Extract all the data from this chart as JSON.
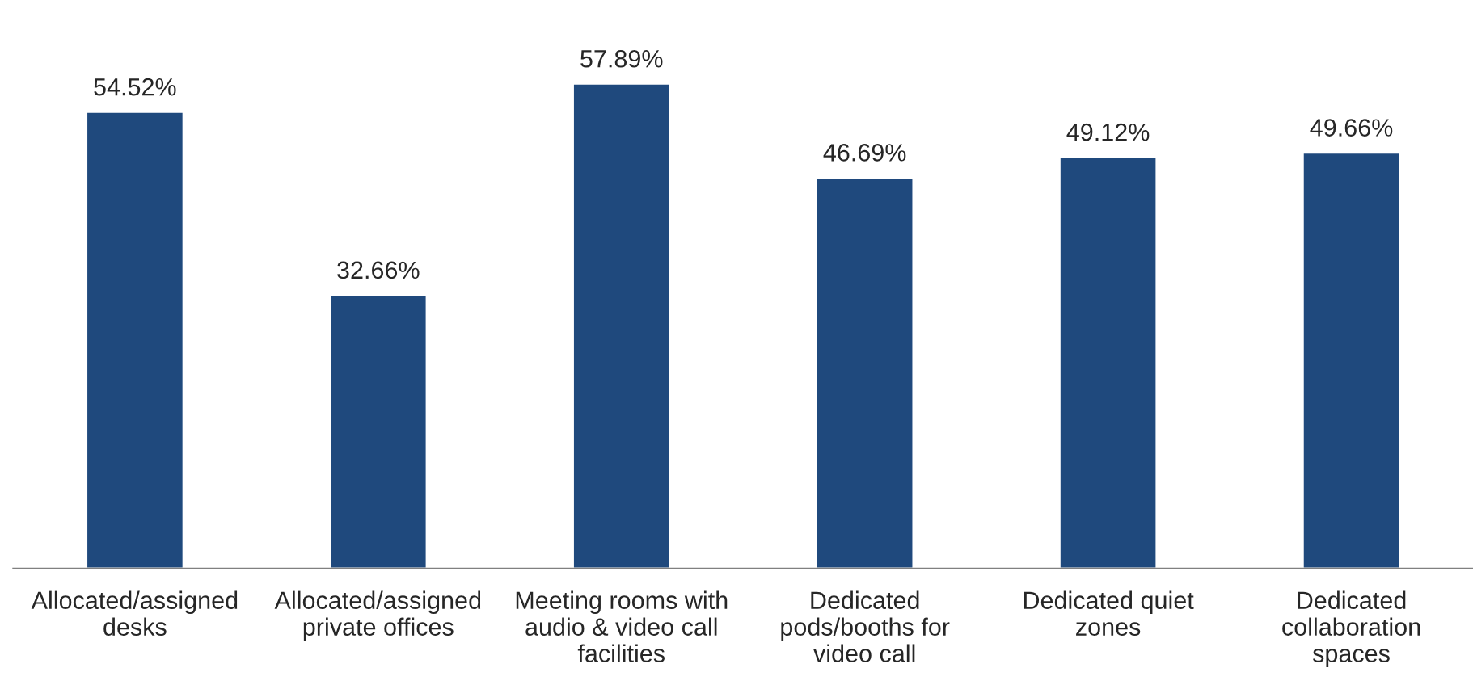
{
  "chart_data": {
    "type": "bar",
    "categories": [
      "Allocated/assigned\ndesks",
      "Allocated/assigned\nprivate offices",
      "Meeting rooms with\naudio & video call\nfacilities",
      "Dedicated\npods/booths for\nvideo call",
      "Dedicated quiet\nzones",
      "Dedicated\ncollaboration\nspaces"
    ],
    "values": [
      54.52,
      32.66,
      57.89,
      46.69,
      49.12,
      49.66
    ],
    "value_labels": [
      "54.52%",
      "32.66%",
      "57.89%",
      "46.69%",
      "49.12%",
      "49.66%"
    ],
    "color": "#1f497d",
    "tick_labels": "x",
    "grid": false,
    "legend": false
  }
}
